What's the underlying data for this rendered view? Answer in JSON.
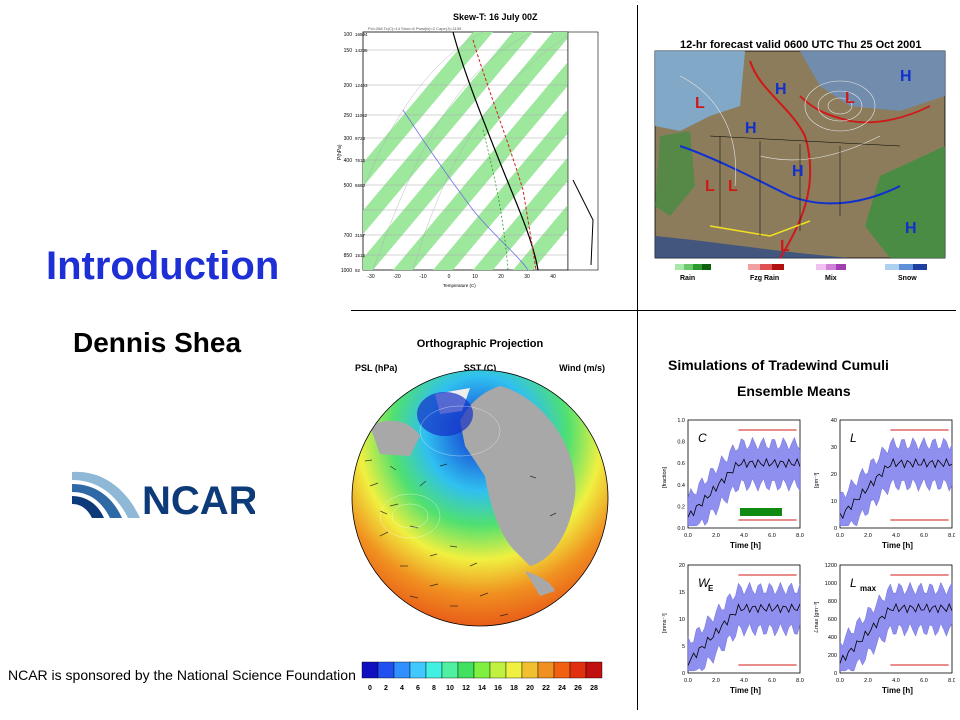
{
  "slide": {
    "title": "Introduction",
    "author": "Dennis Shea",
    "footer": "NCAR is sponsored by the National Science Foundation",
    "title_color": "#1f2fd6"
  },
  "logo": {
    "text": "NCAR",
    "color": "#0d3a78"
  },
  "skewt": {
    "title": "Skew-T: 16 July 00Z",
    "ylabel": "P(hPa)",
    "xlabel": "Temperature (C)",
    "pressure_ticks": [
      "100",
      "150",
      "200",
      "250",
      "300",
      "400",
      "500",
      "700",
      "850",
      "1000"
    ],
    "height_ticks": [
      "16594",
      "14236",
      "12463",
      "11062",
      "9728",
      "7613",
      "5680",
      "3157",
      "1516",
      "92"
    ],
    "temp_ticks": [
      "-30",
      "-20",
      "-10",
      "0",
      "10",
      "20",
      "30",
      "40"
    ]
  },
  "forecast": {
    "title": "12-hr forecast valid 0600 UTC Thu 25 Oct 2001",
    "legend": [
      "Rain",
      "Fzg Rain",
      "Mix",
      "Snow"
    ],
    "highs": "H",
    "lows": "L"
  },
  "ortho": {
    "title": "Orthographic Projection",
    "labels": {
      "left": "PSL (hPa)",
      "center": "SST (C)",
      "right": "Wind (m/s)"
    },
    "colorbar_ticks": [
      "0",
      "2",
      "4",
      "6",
      "8",
      "10",
      "12",
      "14",
      "16",
      "18",
      "20",
      "22",
      "24",
      "26",
      "28"
    ]
  },
  "simulations": {
    "title": "Simulations of Tradewind Cumuli",
    "subtitle": "Ensemble Means",
    "xlabel": "Time [h]",
    "time_ticks": [
      "0.0",
      "2.0",
      "4.0",
      "6.0",
      "8.0"
    ],
    "panels": [
      {
        "symbol": "C",
        "ylabel": "[fraction]",
        "yticks": [
          "1.0",
          "0.8",
          "0.6",
          "0.4",
          "0.2",
          "0.0"
        ]
      },
      {
        "symbol": "L",
        "ylabel": "[gm⁻³]",
        "yticks": [
          "40",
          "30",
          "20",
          "10",
          "0"
        ]
      },
      {
        "symbol": "W",
        "subscript": "E",
        "ylabel": "[mms⁻¹]",
        "yticks": [
          "20",
          "15",
          "10",
          "5",
          "0"
        ]
      },
      {
        "symbol": "L",
        "subscript": "max",
        "ylabel": "ℒmax [gm⁻³]",
        "yticks": [
          "1200",
          "1000",
          "800",
          "600",
          "400",
          "200",
          "0"
        ]
      }
    ]
  }
}
